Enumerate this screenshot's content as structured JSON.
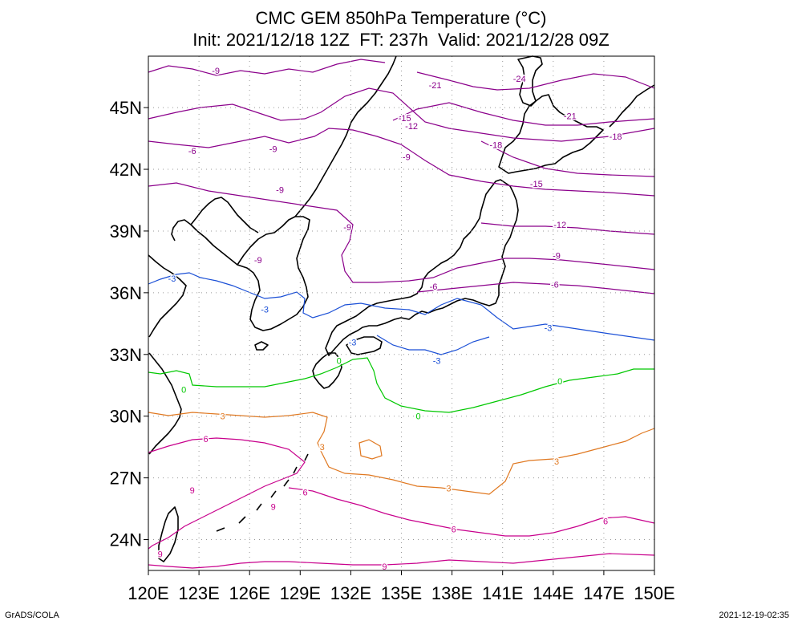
{
  "title": {
    "line1": "CMC GEM 850hPa Temperature (°C)",
    "line2": "Init: 2021/12/18 12Z  FT: 237h  Valid: 2021/12/28 09Z"
  },
  "map": {
    "lon_range": [
      120,
      150
    ],
    "lat_range": [
      22.5,
      47.5
    ],
    "lon_ticks": [
      "120E",
      "123E",
      "126E",
      "129E",
      "132E",
      "135E",
      "138E",
      "141E",
      "144E",
      "147E",
      "150E"
    ],
    "lat_ticks": [
      "24N",
      "27N",
      "30N",
      "33N",
      "36N",
      "39N",
      "42N",
      "45N"
    ],
    "grid": "dotted",
    "contour_colors": {
      "-24": "#8b008b",
      "-21": "#8b008b",
      "-18": "#8b008b",
      "-15": "#8b008b",
      "-12": "#8b008b",
      "-9": "#8b008b",
      "-6": "#8b008b",
      "-3": "#1a4fd6",
      "0": "#00c800",
      "3": "#e07820",
      "6": "#c8008c",
      "9": "#c8008c"
    },
    "contour_labels": [
      {
        "text": "-9",
        "lon": 124.0,
        "lat": 46.8
      },
      {
        "text": "-6",
        "lon": 122.6,
        "lat": 42.9
      },
      {
        "text": "-9",
        "lon": 127.4,
        "lat": 43.0
      },
      {
        "text": "-9",
        "lon": 127.8,
        "lat": 41.0
      },
      {
        "text": "-9",
        "lon": 131.8,
        "lat": 39.2
      },
      {
        "text": "-9",
        "lon": 126.5,
        "lat": 37.6
      },
      {
        "text": "-6",
        "lon": 136.9,
        "lat": 36.3
      },
      {
        "text": "-3",
        "lon": 121.4,
        "lat": 36.7
      },
      {
        "text": "-3",
        "lon": 126.9,
        "lat": 35.2
      },
      {
        "text": "-3",
        "lon": 132.1,
        "lat": 33.6
      },
      {
        "text": "-3",
        "lon": 137.1,
        "lat": 32.7
      },
      {
        "text": "-3",
        "lon": 143.7,
        "lat": 34.3
      },
      {
        "text": "0",
        "lon": 122.1,
        "lat": 31.3
      },
      {
        "text": "0",
        "lon": 131.3,
        "lat": 32.7
      },
      {
        "text": "0",
        "lon": 136.0,
        "lat": 30.0
      },
      {
        "text": "0",
        "lon": 144.4,
        "lat": 31.7
      },
      {
        "text": "3",
        "lon": 124.4,
        "lat": 30.0
      },
      {
        "text": "3",
        "lon": 130.3,
        "lat": 28.5
      },
      {
        "text": "3",
        "lon": 137.8,
        "lat": 26.5
      },
      {
        "text": "3",
        "lon": 144.2,
        "lat": 27.8
      },
      {
        "text": "6",
        "lon": 123.4,
        "lat": 28.9
      },
      {
        "text": "6",
        "lon": 129.3,
        "lat": 26.3
      },
      {
        "text": "6",
        "lon": 138.1,
        "lat": 24.5
      },
      {
        "text": "6",
        "lon": 147.1,
        "lat": 24.9
      },
      {
        "text": "9",
        "lon": 127.4,
        "lat": 25.6
      },
      {
        "text": "9",
        "lon": 122.6,
        "lat": 26.4
      },
      {
        "text": "9",
        "lon": 120.7,
        "lat": 23.3
      },
      {
        "text": "9",
        "lon": 134.0,
        "lat": 22.7
      },
      {
        "text": "-21",
        "lon": 137.0,
        "lat": 46.1
      },
      {
        "text": "-24",
        "lon": 142.0,
        "lat": 46.4
      },
      {
        "text": "-21",
        "lon": 145.0,
        "lat": 44.6
      },
      {
        "text": "-18",
        "lon": 147.7,
        "lat": 43.6
      },
      {
        "text": "-18",
        "lon": 140.6,
        "lat": 43.2
      },
      {
        "text": "-15",
        "lon": 135.2,
        "lat": 44.5
      },
      {
        "text": "-12",
        "lon": 135.6,
        "lat": 44.1
      },
      {
        "text": "-15",
        "lon": 143.0,
        "lat": 41.3
      },
      {
        "text": "-12",
        "lon": 144.4,
        "lat": 39.3
      },
      {
        "text": "-9",
        "lon": 135.3,
        "lat": 42.6
      },
      {
        "text": "-9",
        "lon": 144.2,
        "lat": 37.8
      },
      {
        "text": "-6",
        "lon": 144.1,
        "lat": 36.4
      }
    ]
  },
  "footer": {
    "left": "GrADS/COLA",
    "right": "2021-12-19-02:35"
  }
}
